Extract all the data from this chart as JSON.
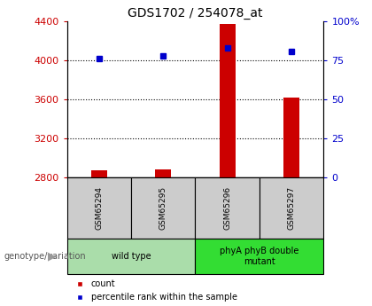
{
  "title": "GDS1702 / 254078_at",
  "samples": [
    "GSM65294",
    "GSM65295",
    "GSM65296",
    "GSM65297"
  ],
  "counts": [
    2870,
    2885,
    4370,
    3620
  ],
  "percentiles": [
    76,
    78,
    83,
    81
  ],
  "ylim_left": [
    2800,
    4400
  ],
  "ylim_right": [
    0,
    100
  ],
  "yticks_left": [
    2800,
    3200,
    3600,
    4000,
    4400
  ],
  "yticks_right": [
    0,
    25,
    50,
    75,
    100
  ],
  "ytick_labels_right": [
    "0",
    "25",
    "50",
    "75",
    "100%"
  ],
  "bar_color": "#cc0000",
  "dot_color": "#0000cc",
  "bar_width": 0.25,
  "groups": [
    {
      "label": "wild type",
      "samples": [
        0,
        1
      ],
      "color": "#aaddaa"
    },
    {
      "label": "phyA phyB double\nmutant",
      "samples": [
        2,
        3
      ],
      "color": "#33dd33"
    }
  ],
  "genotype_label": "genotype/variation",
  "legend_count_label": "count",
  "legend_percentile_label": "percentile rank within the sample",
  "grid_color": "#000000",
  "title_color": "#000000",
  "left_axis_color": "#cc0000",
  "right_axis_color": "#0000cc",
  "sample_box_color": "#cccccc",
  "sample_box_border": "#000000",
  "background_color": "#ffffff"
}
